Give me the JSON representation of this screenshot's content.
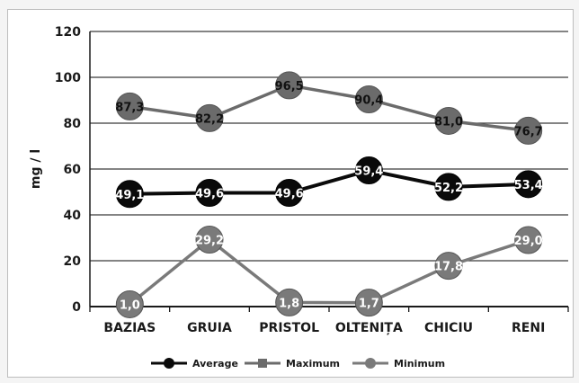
{
  "chart_data": {
    "type": "line",
    "categories": [
      "BAZIAS",
      "GRUIA",
      "PRISTOL",
      "OLTENIȚA",
      "CHICIU",
      "RENI"
    ],
    "ylabel": "mg / l",
    "ylim": [
      0,
      120
    ],
    "yticks": [
      0,
      20,
      40,
      60,
      80,
      100,
      120
    ],
    "grid": true,
    "legend_position": "bottom",
    "series": [
      {
        "name": "Average",
        "color": "#0a0a0a",
        "values": [
          49.1,
          49.6,
          49.6,
          59.4,
          52.2,
          53.4
        ],
        "labels": [
          "49,1",
          "49,6",
          "49,6",
          "59,4",
          "52,2",
          "53,4"
        ]
      },
      {
        "name": "Maximum",
        "color": "#6b6b6b",
        "values": [
          87.3,
          82.2,
          96.5,
          90.4,
          81.0,
          76.7
        ],
        "labels": [
          "87,3",
          "82,2",
          "96,5",
          "90,4",
          "81,0",
          "76,7"
        ]
      },
      {
        "name": "Minimum",
        "color": "#7a7a7a",
        "values": [
          1.0,
          29.2,
          1.8,
          1.7,
          17.8,
          29.0
        ],
        "labels": [
          "1,0",
          "29,2",
          "1,8",
          "1,7",
          "17,8",
          "29,0"
        ]
      }
    ]
  }
}
